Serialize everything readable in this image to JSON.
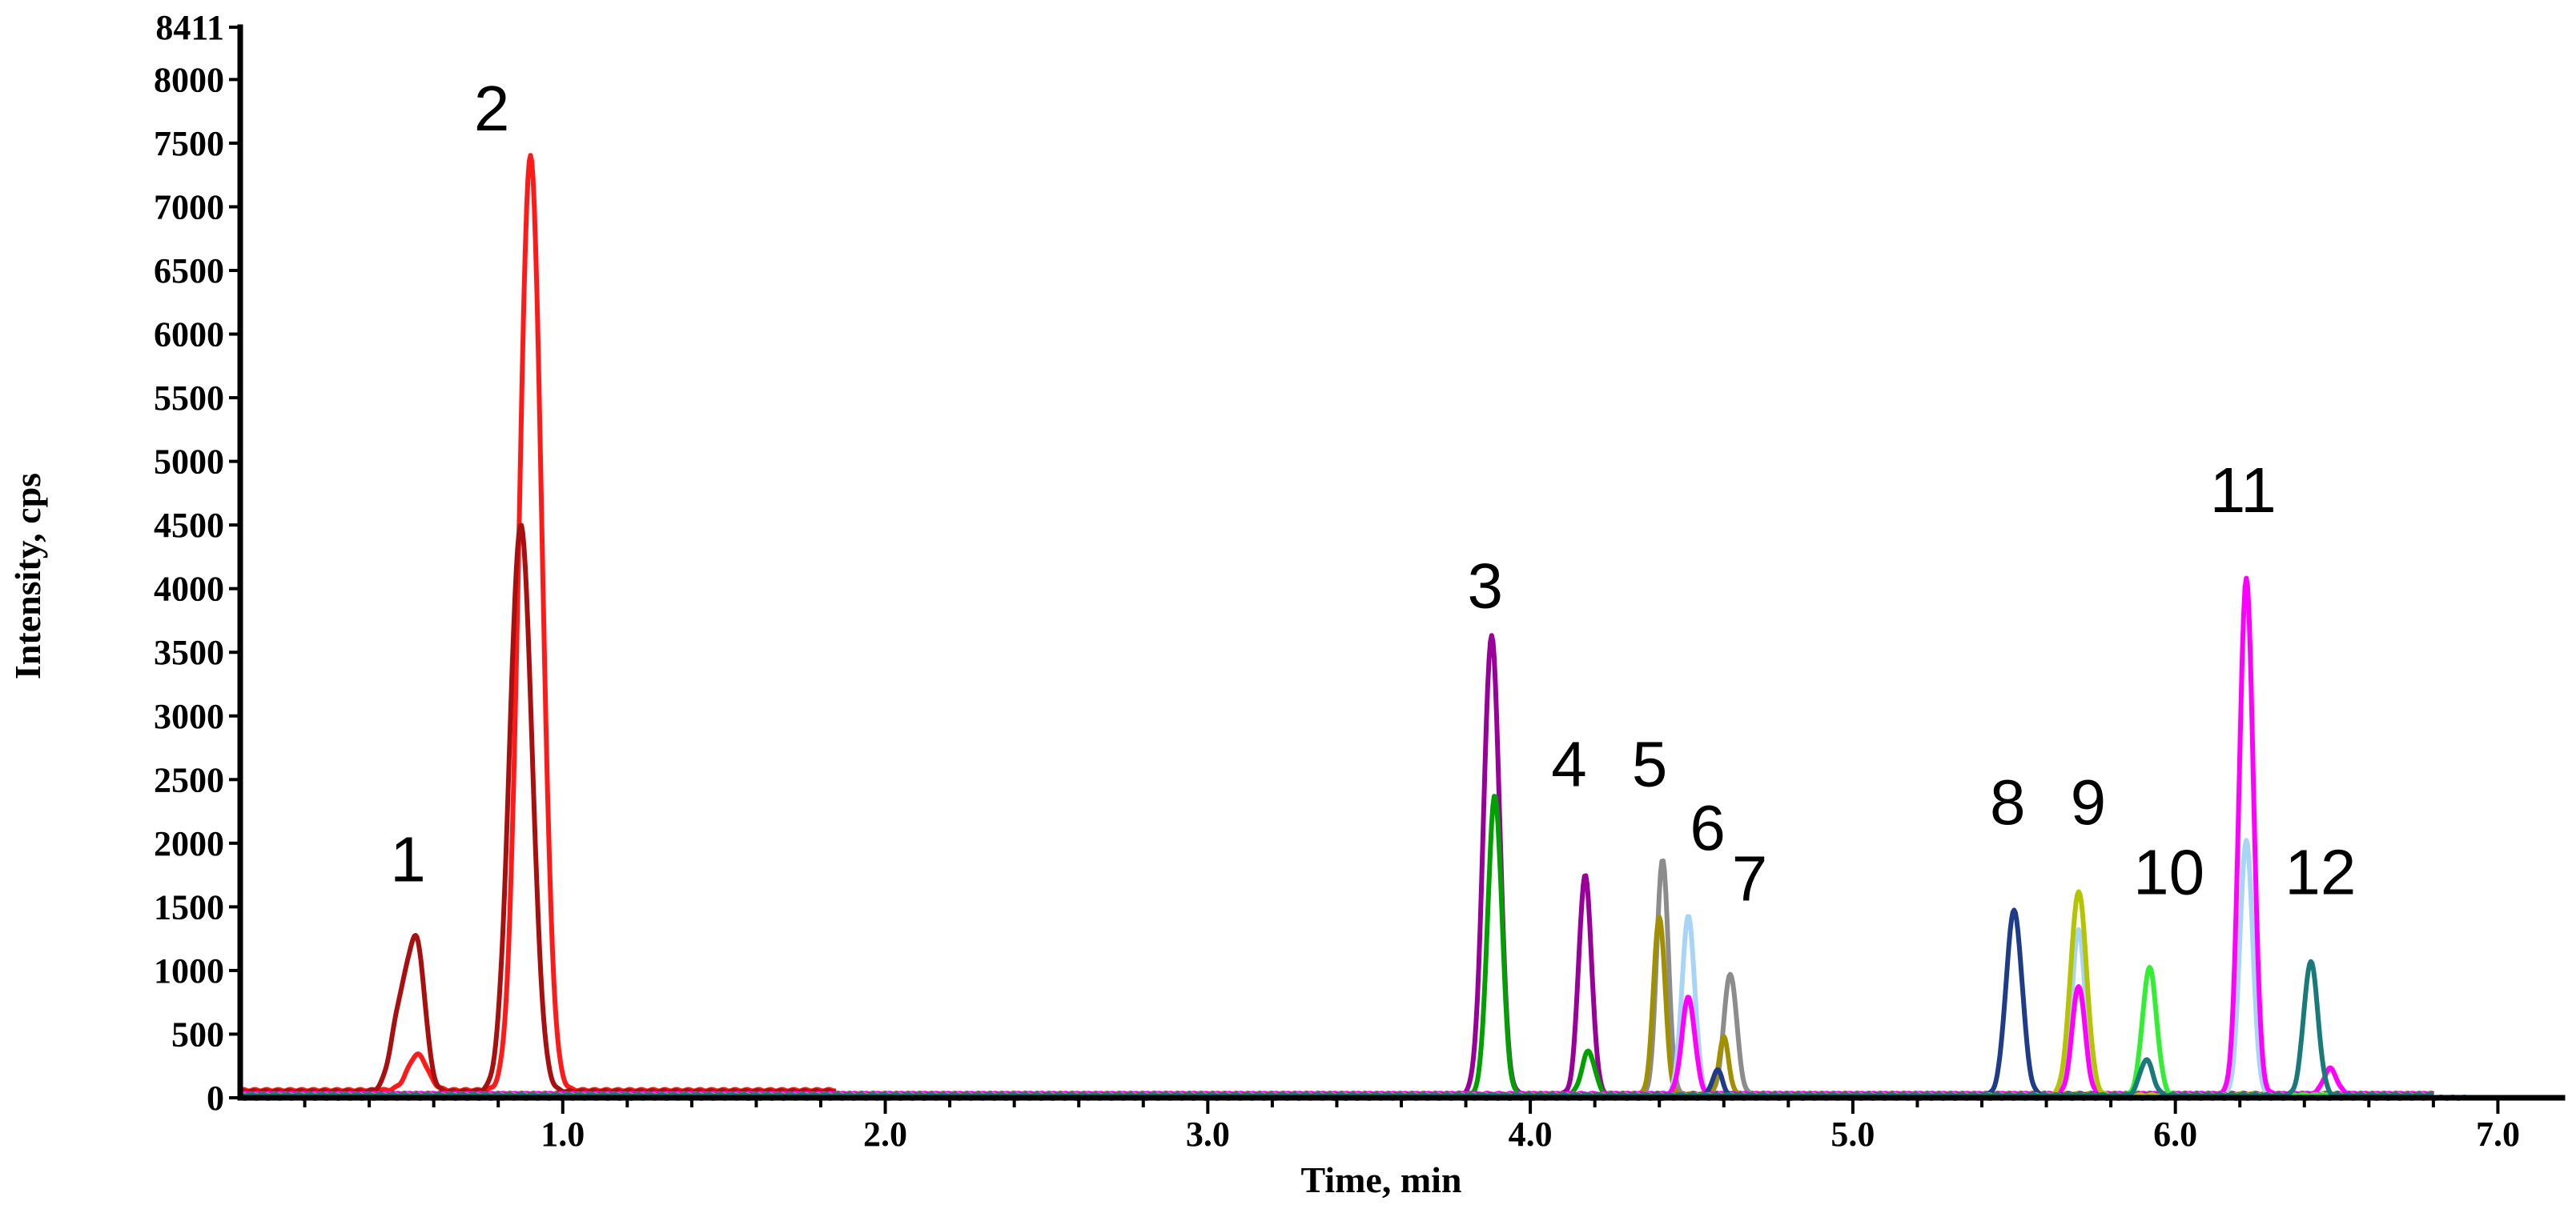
{
  "chart_data": {
    "type": "line",
    "title": "",
    "xlabel": "Time, min",
    "ylabel": "Intensity, cps",
    "xlim": [
      0.0,
      7.2
    ],
    "ylim": [
      0,
      8411
    ],
    "x_ticks": [
      1.0,
      2.0,
      3.0,
      4.0,
      5.0,
      6.0,
      7.0
    ],
    "x_tick_labels": [
      "1.0",
      "2.0",
      "3.0",
      "4.0",
      "5.0",
      "6.0",
      "7.0"
    ],
    "y_ticks": [
      0,
      500,
      1000,
      1500,
      2000,
      2500,
      3000,
      3500,
      4000,
      4500,
      5000,
      5500,
      6000,
      6500,
      7000,
      7500,
      8000,
      8411
    ],
    "y_tick_labels": [
      "0",
      "500",
      "1000",
      "1500",
      "2000",
      "2500",
      "3000",
      "3500",
      "4000",
      "4500",
      "5000",
      "5500",
      "6000",
      "6500",
      "7000",
      "7500",
      "8000",
      "8411"
    ],
    "grid": false,
    "legend": "none",
    "peak_labels": [
      {
        "text": "1",
        "x": 0.52,
        "y": 1700
      },
      {
        "text": "2",
        "x": 0.78,
        "y": 7600
      },
      {
        "text": "3",
        "x": 3.86,
        "y": 3850
      },
      {
        "text": "4",
        "x": 4.12,
        "y": 2450
      },
      {
        "text": "5",
        "x": 4.37,
        "y": 2450
      },
      {
        "text": "6",
        "x": 4.55,
        "y": 1950
      },
      {
        "text": "7",
        "x": 4.68,
        "y": 1550
      },
      {
        "text": "8",
        "x": 5.48,
        "y": 2150
      },
      {
        "text": "9",
        "x": 5.73,
        "y": 2150
      },
      {
        "text": "10",
        "x": 5.98,
        "y": 1600
      },
      {
        "text": "11",
        "x": 6.21,
        "y": 4600
      },
      {
        "text": "12",
        "x": 6.45,
        "y": 1600
      }
    ],
    "series": [
      {
        "color": "#ff1a1a",
        "baseline": 60,
        "x_range": [
          0.0,
          1.85
        ],
        "peaks": [
          {
            "x": 0.55,
            "y": 280,
            "w": 0.03
          },
          {
            "x": 0.9,
            "y": 7350,
            "w": 0.035
          }
        ]
      },
      {
        "color": "#a81010",
        "baseline": 50,
        "x_range": [
          0.0,
          1.85
        ],
        "peaks": [
          {
            "x": 0.5,
            "y": 680,
            "w": 0.03
          },
          {
            "x": 0.55,
            "y": 1020,
            "w": 0.025
          },
          {
            "x": 0.87,
            "y": 4450,
            "w": 0.035
          }
        ]
      },
      {
        "color": "#990099",
        "baseline": 30,
        "x_range": [
          0.0,
          6.8
        ],
        "peaks": [
          {
            "x": 3.88,
            "y": 3600,
            "w": 0.025
          },
          {
            "x": 4.17,
            "y": 1720,
            "w": 0.02
          }
        ]
      },
      {
        "color": "#00a000",
        "baseline": 25,
        "x_range": [
          0.0,
          6.8
        ],
        "peaks": [
          {
            "x": 3.89,
            "y": 2350,
            "w": 0.022
          },
          {
            "x": 4.18,
            "y": 340,
            "w": 0.02
          }
        ]
      },
      {
        "color": "#8c8c8c",
        "baseline": 25,
        "x_range": [
          0.0,
          6.8
        ],
        "peaks": [
          {
            "x": 4.41,
            "y": 1850,
            "w": 0.018
          },
          {
            "x": 4.62,
            "y": 950,
            "w": 0.02
          }
        ]
      },
      {
        "color": "#a09000",
        "baseline": 25,
        "x_range": [
          0.0,
          6.8
        ],
        "peaks": [
          {
            "x": 4.4,
            "y": 1400,
            "w": 0.018
          },
          {
            "x": 4.6,
            "y": 450,
            "w": 0.015
          }
        ]
      },
      {
        "color": "#a8d4f5",
        "baseline": 25,
        "x_range": [
          0.0,
          6.8
        ],
        "peaks": [
          {
            "x": 4.49,
            "y": 1400,
            "w": 0.02
          },
          {
            "x": 5.7,
            "y": 1300,
            "w": 0.02
          },
          {
            "x": 6.22,
            "y": 2000,
            "w": 0.02
          }
        ]
      },
      {
        "color": "#ff00ff",
        "baseline": 30,
        "x_range": [
          0.0,
          6.8
        ],
        "peaks": [
          {
            "x": 4.49,
            "y": 760,
            "w": 0.02
          },
          {
            "x": 5.7,
            "y": 850,
            "w": 0.02
          },
          {
            "x": 6.22,
            "y": 4050,
            "w": 0.022
          },
          {
            "x": 6.48,
            "y": 200,
            "w": 0.02
          }
        ]
      },
      {
        "color": "#1f3c88",
        "baseline": 20,
        "x_range": [
          0.0,
          6.8
        ],
        "peaks": [
          {
            "x": 4.58,
            "y": 200,
            "w": 0.015
          },
          {
            "x": 5.5,
            "y": 1450,
            "w": 0.025
          }
        ]
      },
      {
        "color": "#b5c400",
        "baseline": 20,
        "x_range": [
          0.0,
          6.8
        ],
        "peaks": [
          {
            "x": 5.7,
            "y": 1600,
            "w": 0.025
          }
        ]
      },
      {
        "color": "#33ee33",
        "baseline": 20,
        "x_range": [
          0.0,
          6.8
        ],
        "peaks": [
          {
            "x": 5.92,
            "y": 1000,
            "w": 0.022
          }
        ]
      },
      {
        "color": "#1a7a7a",
        "baseline": 20,
        "x_range": [
          0.0,
          6.8
        ],
        "peaks": [
          {
            "x": 5.91,
            "y": 280,
            "w": 0.02
          },
          {
            "x": 6.42,
            "y": 1050,
            "w": 0.022
          }
        ]
      },
      {
        "color": "#3b78c8",
        "baseline": 0,
        "x_range": [
          0.0,
          6.9
        ],
        "peaks": []
      }
    ]
  }
}
